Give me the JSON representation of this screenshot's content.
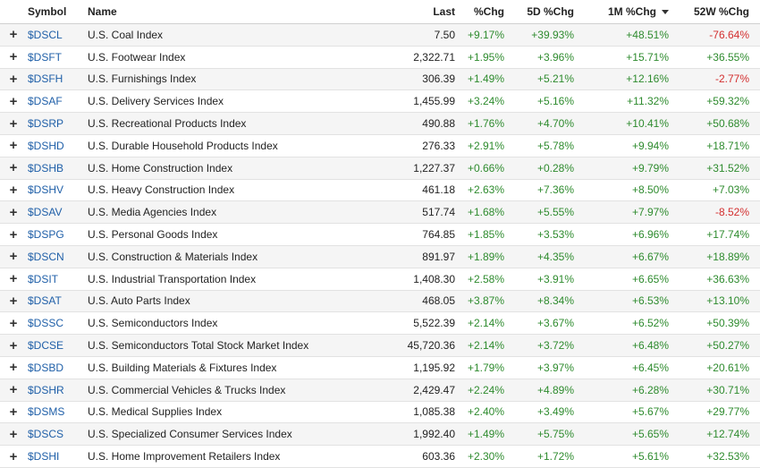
{
  "header": {
    "symbol": "Symbol",
    "name": "Name",
    "last": "Last",
    "pct_chg": "%Chg",
    "five_day": "5D %Chg",
    "one_month": "1M %Chg",
    "fifty_two_week": "52W %Chg",
    "sorted_column": "1M %Chg",
    "sort_direction": "descending"
  },
  "plus_glyph": "+",
  "colors": {
    "positive": "#2e8b2e",
    "negative": "#d32f2f",
    "link": "#1f5fa8"
  },
  "rows": [
    {
      "symbol": "$DSCL",
      "name": "U.S. Coal Index",
      "last": "7.50",
      "chg": "+9.17%",
      "d5": "+39.93%",
      "m1": "+48.51%",
      "w52": "-76.64%"
    },
    {
      "symbol": "$DSFT",
      "name": "U.S. Footwear Index",
      "last": "2,322.71",
      "chg": "+1.95%",
      "d5": "+3.96%",
      "m1": "+15.71%",
      "w52": "+36.55%"
    },
    {
      "symbol": "$DSFH",
      "name": "U.S. Furnishings Index",
      "last": "306.39",
      "chg": "+1.49%",
      "d5": "+5.21%",
      "m1": "+12.16%",
      "w52": "-2.77%"
    },
    {
      "symbol": "$DSAF",
      "name": "U.S. Delivery Services Index",
      "last": "1,455.99",
      "chg": "+3.24%",
      "d5": "+5.16%",
      "m1": "+11.32%",
      "w52": "+59.32%"
    },
    {
      "symbol": "$DSRP",
      "name": "U.S. Recreational Products Index",
      "last": "490.88",
      "chg": "+1.76%",
      "d5": "+4.70%",
      "m1": "+10.41%",
      "w52": "+50.68%"
    },
    {
      "symbol": "$DSHD",
      "name": "U.S. Durable Household Products Index",
      "last": "276.33",
      "chg": "+2.91%",
      "d5": "+5.78%",
      "m1": "+9.94%",
      "w52": "+18.71%"
    },
    {
      "symbol": "$DSHB",
      "name": "U.S. Home Construction Index",
      "last": "1,227.37",
      "chg": "+0.66%",
      "d5": "+0.28%",
      "m1": "+9.79%",
      "w52": "+31.52%"
    },
    {
      "symbol": "$DSHV",
      "name": "U.S. Heavy Construction Index",
      "last": "461.18",
      "chg": "+2.63%",
      "d5": "+7.36%",
      "m1": "+8.50%",
      "w52": "+7.03%"
    },
    {
      "symbol": "$DSAV",
      "name": "U.S. Media Agencies Index",
      "last": "517.74",
      "chg": "+1.68%",
      "d5": "+5.55%",
      "m1": "+7.97%",
      "w52": "-8.52%"
    },
    {
      "symbol": "$DSPG",
      "name": "U.S. Personal Goods Index",
      "last": "764.85",
      "chg": "+1.85%",
      "d5": "+3.53%",
      "m1": "+6.96%",
      "w52": "+17.74%"
    },
    {
      "symbol": "$DSCN",
      "name": "U.S. Construction & Materials Index",
      "last": "891.97",
      "chg": "+1.89%",
      "d5": "+4.35%",
      "m1": "+6.67%",
      "w52": "+18.89%"
    },
    {
      "symbol": "$DSIT",
      "name": "U.S. Industrial Transportation Index",
      "last": "1,408.30",
      "chg": "+2.58%",
      "d5": "+3.91%",
      "m1": "+6.65%",
      "w52": "+36.63%"
    },
    {
      "symbol": "$DSAT",
      "name": "U.S. Auto Parts Index",
      "last": "468.05",
      "chg": "+3.87%",
      "d5": "+8.34%",
      "m1": "+6.53%",
      "w52": "+13.10%"
    },
    {
      "symbol": "$DSSC",
      "name": "U.S. Semiconductors Index",
      "last": "5,522.39",
      "chg": "+2.14%",
      "d5": "+3.67%",
      "m1": "+6.52%",
      "w52": "+50.39%"
    },
    {
      "symbol": "$DCSE",
      "name": "U.S. Semiconductors Total Stock Market Index",
      "last": "45,720.36",
      "chg": "+2.14%",
      "d5": "+3.72%",
      "m1": "+6.48%",
      "w52": "+50.27%"
    },
    {
      "symbol": "$DSBD",
      "name": "U.S. Building Materials & Fixtures Index",
      "last": "1,195.92",
      "chg": "+1.79%",
      "d5": "+3.97%",
      "m1": "+6.45%",
      "w52": "+20.61%"
    },
    {
      "symbol": "$DSHR",
      "name": "U.S. Commercial Vehicles & Trucks Index",
      "last": "2,429.47",
      "chg": "+2.24%",
      "d5": "+4.89%",
      "m1": "+6.28%",
      "w52": "+30.71%"
    },
    {
      "symbol": "$DSMS",
      "name": "U.S. Medical Supplies Index",
      "last": "1,085.38",
      "chg": "+2.40%",
      "d5": "+3.49%",
      "m1": "+5.67%",
      "w52": "+29.77%"
    },
    {
      "symbol": "$DSCS",
      "name": "U.S. Specialized Consumer Services Index",
      "last": "1,992.40",
      "chg": "+1.49%",
      "d5": "+5.75%",
      "m1": "+5.65%",
      "w52": "+12.74%"
    },
    {
      "symbol": "$DSHI",
      "name": "U.S. Home Improvement Retailers Index",
      "last": "603.36",
      "chg": "+2.30%",
      "d5": "+1.72%",
      "m1": "+5.61%",
      "w52": "+32.53%"
    }
  ]
}
